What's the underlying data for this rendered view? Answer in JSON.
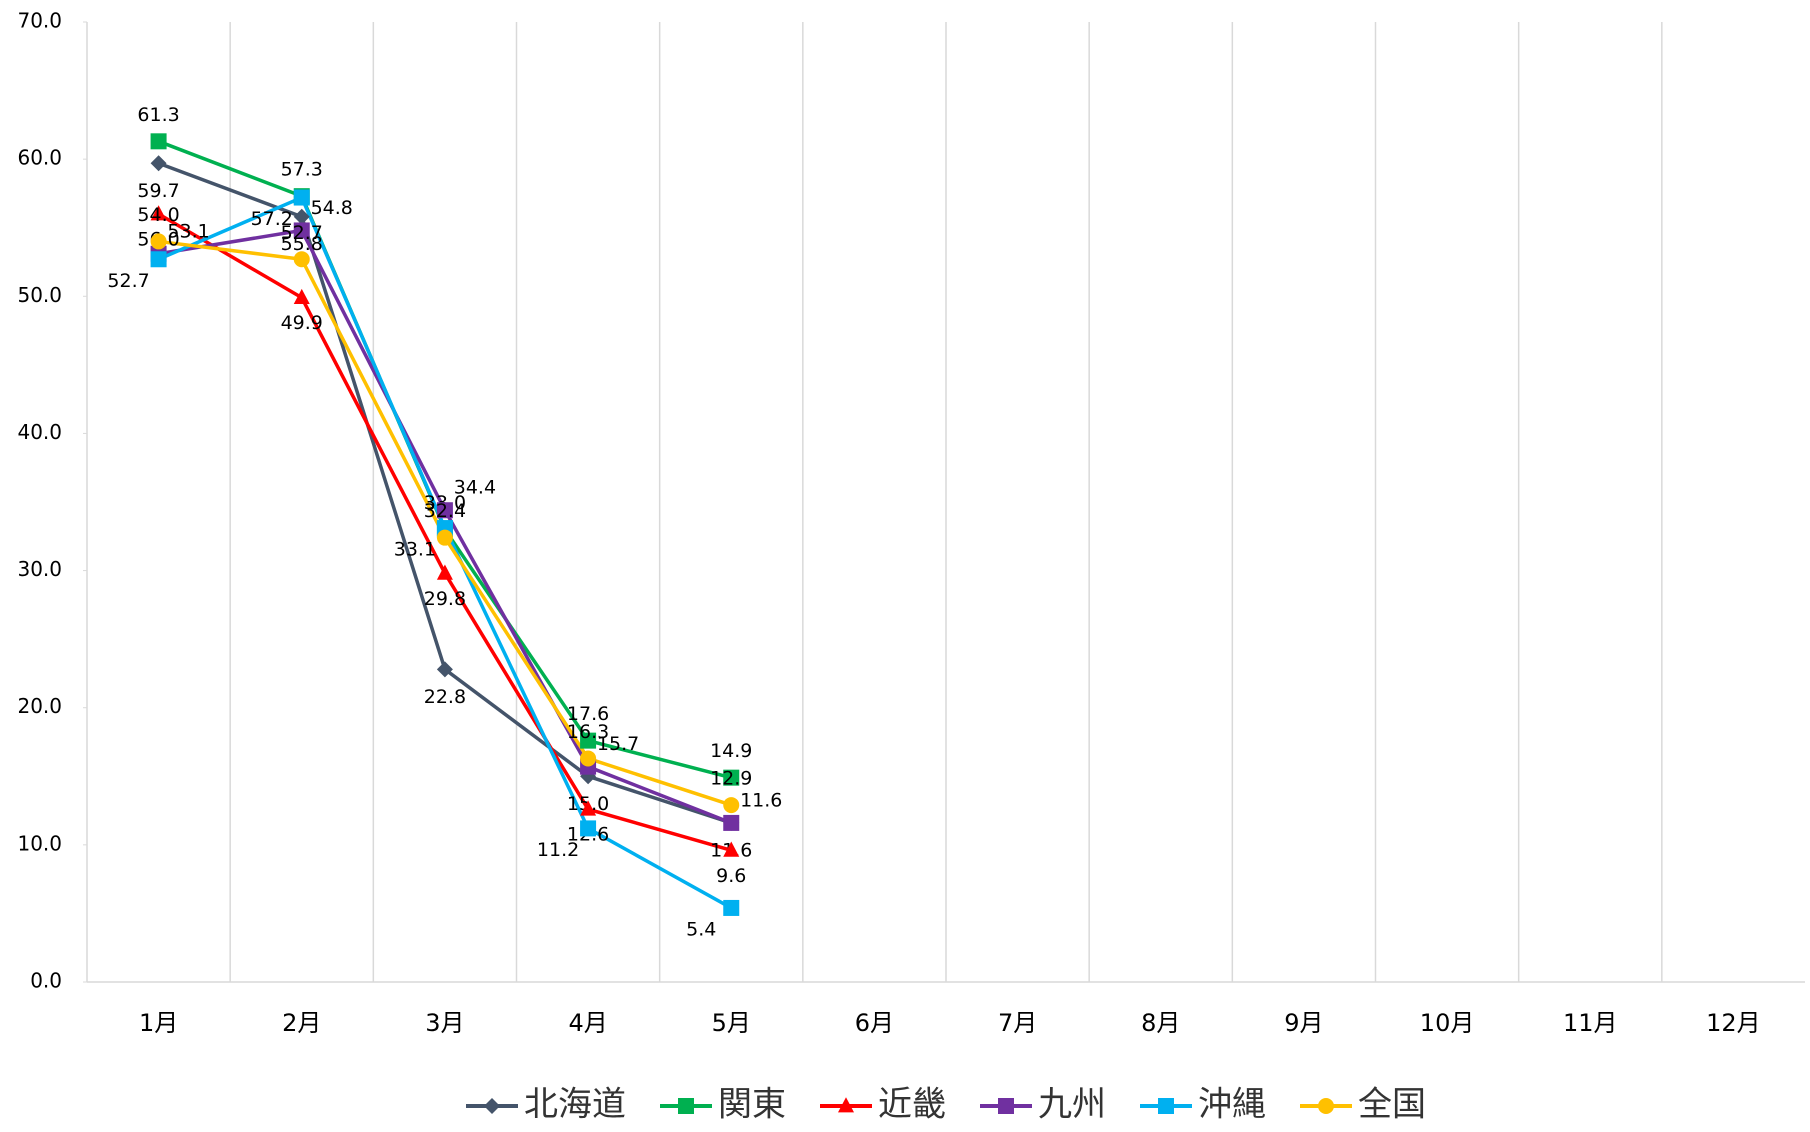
{
  "chart_data": {
    "type": "line",
    "categories": [
      "1月",
      "2月",
      "3月",
      "4月",
      "5月",
      "6月",
      "7月",
      "8月",
      "9月",
      "10月",
      "11月",
      "12月"
    ],
    "ylim": [
      0,
      70
    ],
    "yticks": [
      {
        "value": 0,
        "label": "0.0"
      },
      {
        "value": 10,
        "label": "10.0"
      },
      {
        "value": 20,
        "label": "20.0"
      },
      {
        "value": 30,
        "label": "30.0"
      },
      {
        "value": 40,
        "label": "40.0"
      },
      {
        "value": 50,
        "label": "50.0"
      },
      {
        "value": 60,
        "label": "60.0"
      },
      {
        "value": 70,
        "label": "70.0"
      }
    ],
    "grid": true,
    "legend": "bottom",
    "series": [
      {
        "name": "北海道",
        "color": "#44546a",
        "marker": "diamond",
        "values": [
          59.7,
          55.8,
          22.8,
          15.0,
          11.6,
          null,
          null,
          null,
          null,
          null,
          null,
          null
        ],
        "value_labels": [
          "59.7",
          "55.8",
          "22.8",
          "15.0",
          "11.6",
          null,
          null,
          null,
          null,
          null,
          null,
          null
        ]
      },
      {
        "name": "関東",
        "color": "#00b050",
        "marker": "square",
        "values": [
          61.3,
          57.3,
          33.0,
          17.6,
          14.9,
          null,
          null,
          null,
          null,
          null,
          null,
          null
        ],
        "value_labels": [
          "61.3",
          "57.3",
          "33.0",
          "17.6",
          "14.9",
          null,
          null,
          null,
          null,
          null,
          null,
          null
        ]
      },
      {
        "name": "近畿",
        "color": "#ff0000",
        "marker": "triangle",
        "values": [
          56.0,
          49.9,
          29.8,
          12.6,
          9.6,
          null,
          null,
          null,
          null,
          null,
          null,
          null
        ],
        "value_labels": [
          "56.0",
          "49.9",
          "29.8",
          "12.6",
          "9.6",
          null,
          null,
          null,
          null,
          null,
          null,
          null
        ]
      },
      {
        "name": "九州",
        "color": "#7030a0",
        "marker": "square",
        "values": [
          53.1,
          54.8,
          34.4,
          15.7,
          11.6,
          null,
          null,
          null,
          null,
          null,
          null,
          null
        ],
        "value_labels": [
          "53.1",
          "54.8",
          "34.4",
          "15.7",
          "11.6",
          null,
          null,
          null,
          null,
          null,
          null,
          null
        ]
      },
      {
        "name": "沖縄",
        "color": "#00b0f0",
        "marker": "square",
        "values": [
          52.7,
          57.2,
          33.1,
          11.2,
          5.4,
          null,
          null,
          null,
          null,
          null,
          null,
          null
        ],
        "value_labels": [
          "52.7",
          "57.2",
          "33.1",
          "11.2",
          "5.4",
          null,
          null,
          null,
          null,
          null,
          null,
          null
        ]
      },
      {
        "name": "全国",
        "color": "#ffc000",
        "marker": "circle",
        "values": [
          54.0,
          52.7,
          32.4,
          16.3,
          12.9,
          null,
          null,
          null,
          null,
          null,
          null,
          null
        ],
        "value_labels": [
          "54.0",
          "52.7",
          "32.4",
          "16.3",
          "12.9",
          null,
          null,
          null,
          null,
          null,
          null,
          null
        ]
      }
    ]
  }
}
